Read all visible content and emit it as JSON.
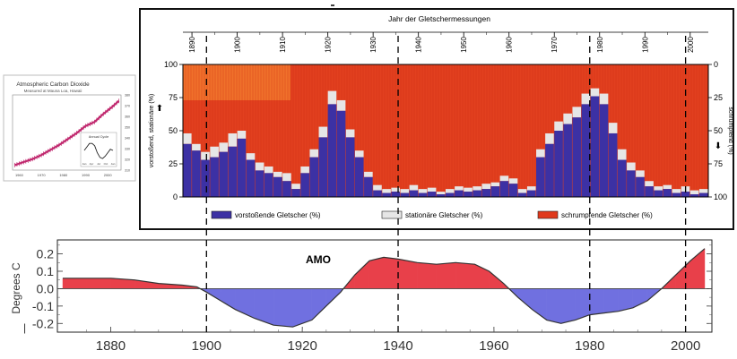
{
  "inset": {
    "title": "Atmospheric Carbon Dioxide",
    "subtitle": "Measured at Mauna Loa, Hawaii",
    "x_ticks": [
      "1960",
      "1970",
      "1980",
      "1990",
      "2000"
    ],
    "y_ticks": [
      "380",
      "370",
      "360",
      "350",
      "340",
      "330",
      "320",
      "310"
    ],
    "annual_cycle_label": "Annual Cycle",
    "annual_cycle_months": [
      "Jan",
      "Apr",
      "Jul",
      "Oct",
      "Jan"
    ],
    "series_color": "#c0286e",
    "chart_data": {
      "type": "line",
      "x": [
        1958,
        1962,
        1966,
        1970,
        1974,
        1978,
        1982,
        1986,
        1990,
        1994,
        1998,
        2002,
        2005
      ],
      "values": [
        315,
        318,
        321,
        325,
        330,
        335,
        341,
        347,
        354,
        358,
        366,
        373,
        379
      ],
      "annual_cycle": [
        0,
        1.5,
        3,
        3,
        2,
        -1,
        -3,
        -3.5,
        -2.5,
        -1,
        0.5,
        0
      ],
      "ylim": [
        310,
        385
      ]
    }
  },
  "glacier": {
    "title": "Jahr der Gletschermessungen",
    "top_ticks": [
      "1890",
      "1900",
      "1910",
      "1920",
      "1930",
      "1940",
      "1950",
      "1960",
      "1970",
      "1980",
      "1990",
      "2000"
    ],
    "left_ticks": [
      "100",
      "75",
      "50",
      "25",
      "0"
    ],
    "right_ticks": [
      "0",
      "25",
      "50",
      "75",
      "100"
    ],
    "left_label": "vorstoßend, stationäre (%)",
    "right_label": "schrumpfend (%)",
    "legend": {
      "advancing": "vorstoßende Gletscher (%)",
      "stationary": "stationäre Gletscher (%)",
      "retreating": "schrumpfende Gletscher (%)"
    },
    "colors": {
      "advancing": "#3c31a4",
      "stationary": "#e6e6e6",
      "retreating": "#e0391c",
      "retreating_light": "#f06a2c"
    },
    "chart_data": {
      "type": "bar",
      "stacked": true,
      "x_start": 1888,
      "x_end": 2004,
      "years": [
        1888,
        1890,
        1892,
        1894,
        1896,
        1898,
        1900,
        1902,
        1904,
        1906,
        1908,
        1910,
        1912,
        1914,
        1916,
        1918,
        1920,
        1922,
        1924,
        1926,
        1928,
        1930,
        1932,
        1934,
        1936,
        1938,
        1940,
        1942,
        1944,
        1946,
        1948,
        1950,
        1952,
        1954,
        1956,
        1958,
        1960,
        1962,
        1964,
        1966,
        1968,
        1970,
        1972,
        1974,
        1976,
        1978,
        1980,
        1982,
        1984,
        1986,
        1988,
        1990,
        1992,
        1994,
        1996,
        1998,
        2000,
        2002
      ],
      "advancing": [
        40,
        35,
        28,
        30,
        34,
        38,
        44,
        28,
        20,
        18,
        15,
        12,
        6,
        18,
        30,
        45,
        70,
        65,
        45,
        30,
        15,
        5,
        3,
        4,
        3,
        5,
        3,
        4,
        2,
        3,
        5,
        4,
        5,
        6,
        8,
        12,
        10,
        3,
        5,
        30,
        40,
        50,
        55,
        60,
        70,
        76,
        70,
        48,
        28,
        20,
        15,
        8,
        5,
        6,
        3,
        4,
        2,
        3
      ],
      "stationary": [
        8,
        5,
        6,
        8,
        7,
        10,
        6,
        5,
        6,
        5,
        4,
        6,
        4,
        5,
        6,
        8,
        10,
        8,
        6,
        5,
        4,
        4,
        3,
        3,
        3,
        4,
        3,
        3,
        2,
        3,
        3,
        3,
        3,
        4,
        3,
        4,
        4,
        3,
        3,
        6,
        8,
        7,
        8,
        8,
        8,
        6,
        8,
        8,
        8,
        6,
        5,
        4,
        3,
        3,
        3,
        4,
        3,
        3
      ],
      "ylim": [
        0,
        100
      ]
    }
  },
  "amo": {
    "title": "AMO",
    "ylabel": "Degrees C",
    "y_ticks": [
      "0.2",
      "0.1",
      "0.0",
      "-0.1",
      "-0.2"
    ],
    "x_ticks": [
      "1880",
      "1900",
      "1920",
      "1940",
      "1960",
      "1980",
      "2000"
    ],
    "colors": {
      "positive": "#e8404a",
      "negative": "#7070e0"
    },
    "chart_data": {
      "type": "area",
      "x": [
        1870,
        1875,
        1880,
        1885,
        1890,
        1895,
        1898,
        1900,
        1903,
        1906,
        1910,
        1914,
        1918,
        1922,
        1925,
        1928,
        1931,
        1934,
        1937,
        1940,
        1944,
        1948,
        1952,
        1956,
        1959,
        1962,
        1965,
        1968,
        1971,
        1974,
        1977,
        1980,
        1983,
        1986,
        1989,
        1992,
        1995,
        1998,
        2001,
        2004
      ],
      "values": [
        0.06,
        0.06,
        0.06,
        0.05,
        0.03,
        0.02,
        0.01,
        -0.02,
        -0.07,
        -0.12,
        -0.17,
        -0.21,
        -0.22,
        -0.18,
        -0.1,
        -0.02,
        0.08,
        0.16,
        0.18,
        0.17,
        0.15,
        0.14,
        0.15,
        0.14,
        0.1,
        0.03,
        -0.05,
        -0.12,
        -0.18,
        -0.2,
        -0.18,
        -0.15,
        -0.14,
        -0.13,
        -0.11,
        -0.07,
        0.0,
        0.08,
        0.16,
        0.23
      ],
      "ylim": [
        -0.25,
        0.28
      ],
      "xlim": [
        1870,
        2004
      ]
    }
  },
  "markers": {
    "years": [
      1900,
      1940,
      1980,
      2000
    ]
  }
}
